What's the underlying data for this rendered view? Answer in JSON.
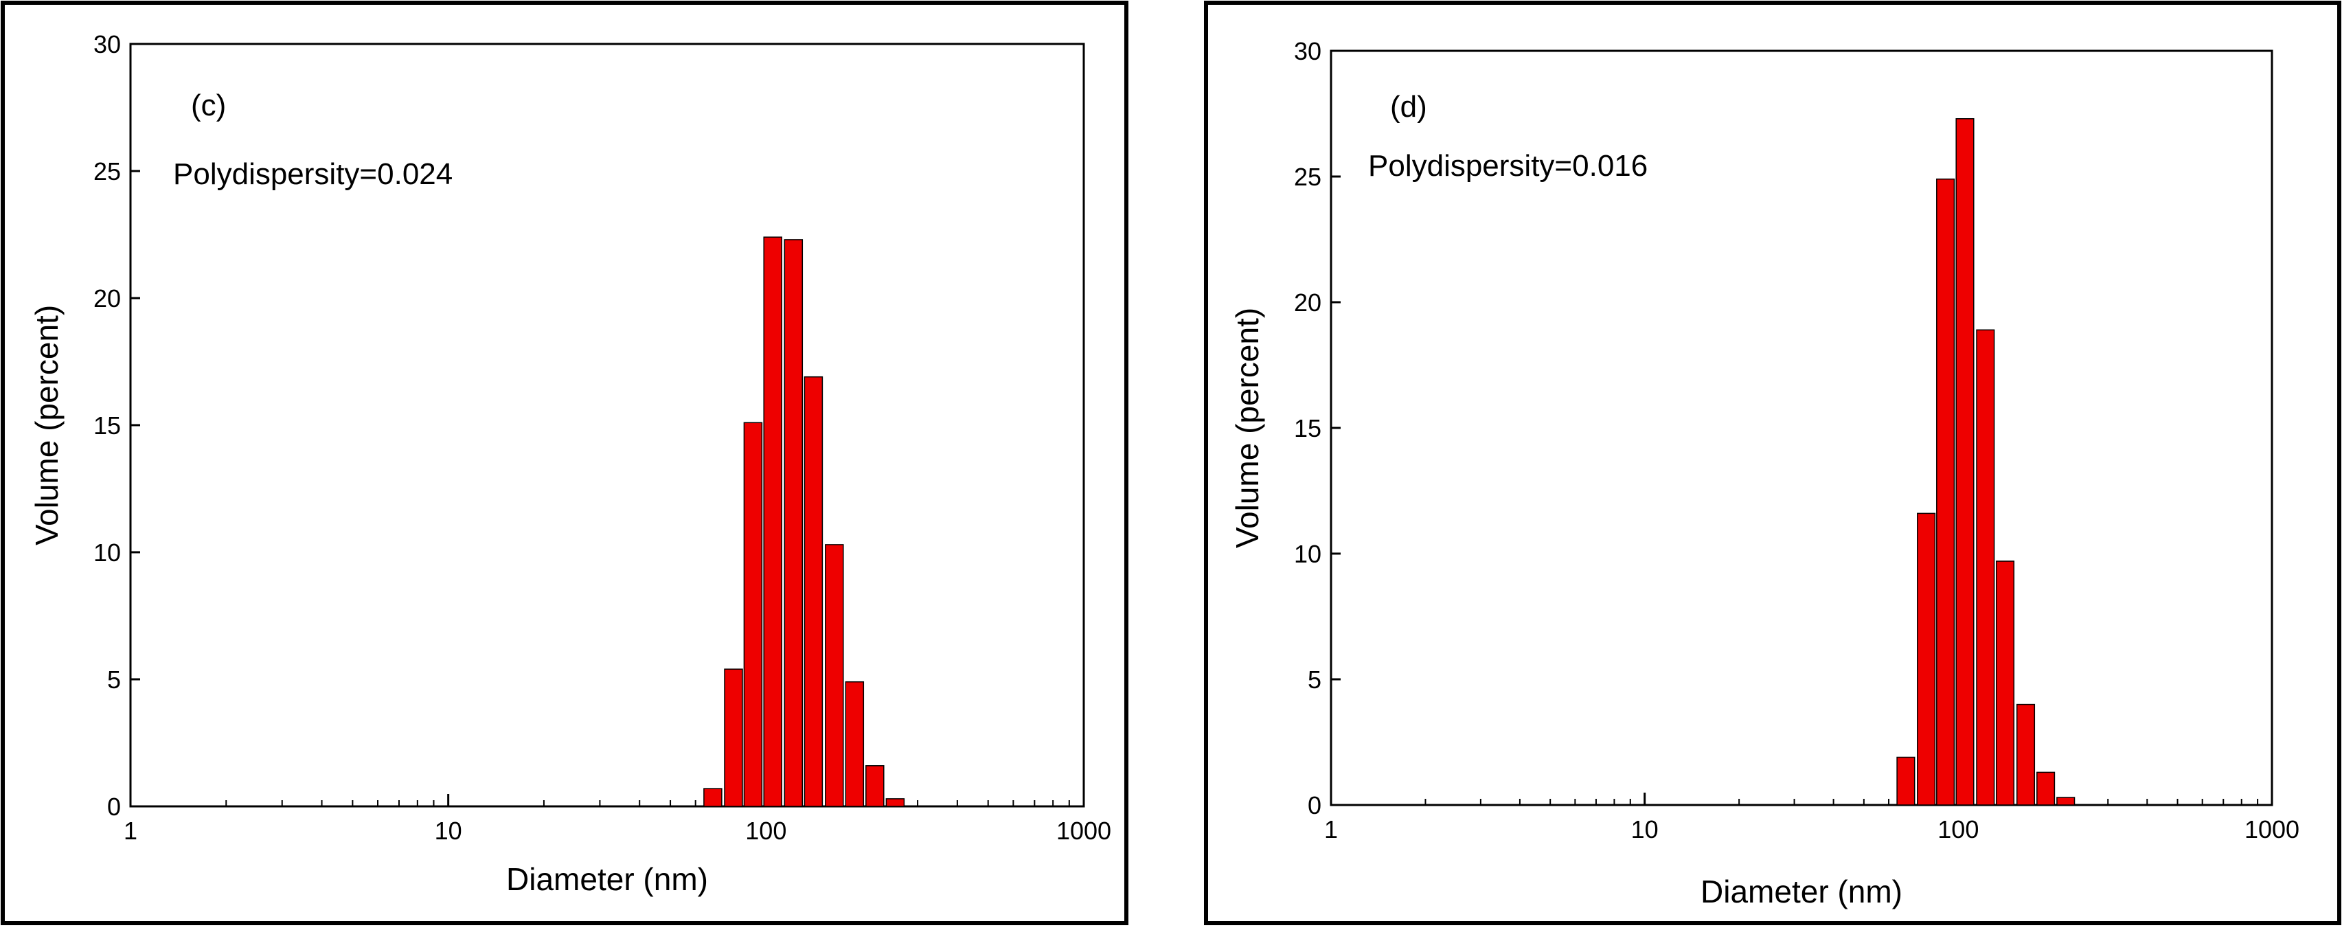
{
  "chart_data": [
    {
      "type": "bar",
      "panel_label": "(c)",
      "annotation": "Polydispersity=0.024",
      "xlabel": "Diameter (nm)",
      "ylabel": "Volume (percent)",
      "x_scale": "log",
      "xlim": [
        1,
        1000
      ],
      "ylim": [
        0,
        30
      ],
      "x_ticks": [
        1,
        10,
        100,
        1000
      ],
      "x_tick_labels": [
        "1",
        "10",
        "100",
        "1000"
      ],
      "y_ticks": [
        0,
        5,
        10,
        15,
        20,
        25,
        30
      ],
      "y_tick_labels": [
        "0",
        "5",
        "10",
        "15",
        "20",
        "25",
        "30"
      ],
      "bar_color": "#ee0000",
      "bins": [
        {
          "diameter": 68,
          "value": 0.7
        },
        {
          "diameter": 79,
          "value": 5.4
        },
        {
          "diameter": 91,
          "value": 15.1
        },
        {
          "diameter": 105,
          "value": 22.4
        },
        {
          "diameter": 122,
          "value": 22.3
        },
        {
          "diameter": 141,
          "value": 16.9
        },
        {
          "diameter": 164,
          "value": 10.3
        },
        {
          "diameter": 190,
          "value": 4.9
        },
        {
          "diameter": 220,
          "value": 1.6
        },
        {
          "diameter": 255,
          "value": 0.3
        }
      ]
    },
    {
      "type": "bar",
      "panel_label": "(d)",
      "annotation": "Polydispersity=0.016",
      "xlabel": "Diameter (nm)",
      "ylabel": "Volume (percent)",
      "x_scale": "log",
      "xlim": [
        1,
        1000
      ],
      "ylim": [
        0,
        30
      ],
      "x_ticks": [
        1,
        10,
        100,
        1000
      ],
      "x_tick_labels": [
        "1",
        "10",
        "100",
        "1000"
      ],
      "y_ticks": [
        0,
        5,
        10,
        15,
        20,
        25,
        30
      ],
      "y_tick_labels": [
        "0",
        "5",
        "10",
        "15",
        "20",
        "25",
        "30"
      ],
      "bar_color": "#ee0000",
      "bins": [
        {
          "diameter": 68,
          "value": 1.9
        },
        {
          "diameter": 79,
          "value": 11.6
        },
        {
          "diameter": 91,
          "value": 24.9
        },
        {
          "diameter": 105,
          "value": 27.3
        },
        {
          "diameter": 122,
          "value": 18.9
        },
        {
          "diameter": 141,
          "value": 9.7
        },
        {
          "diameter": 164,
          "value": 4.0
        },
        {
          "diameter": 190,
          "value": 1.3
        },
        {
          "diameter": 220,
          "value": 0.3
        }
      ]
    }
  ]
}
